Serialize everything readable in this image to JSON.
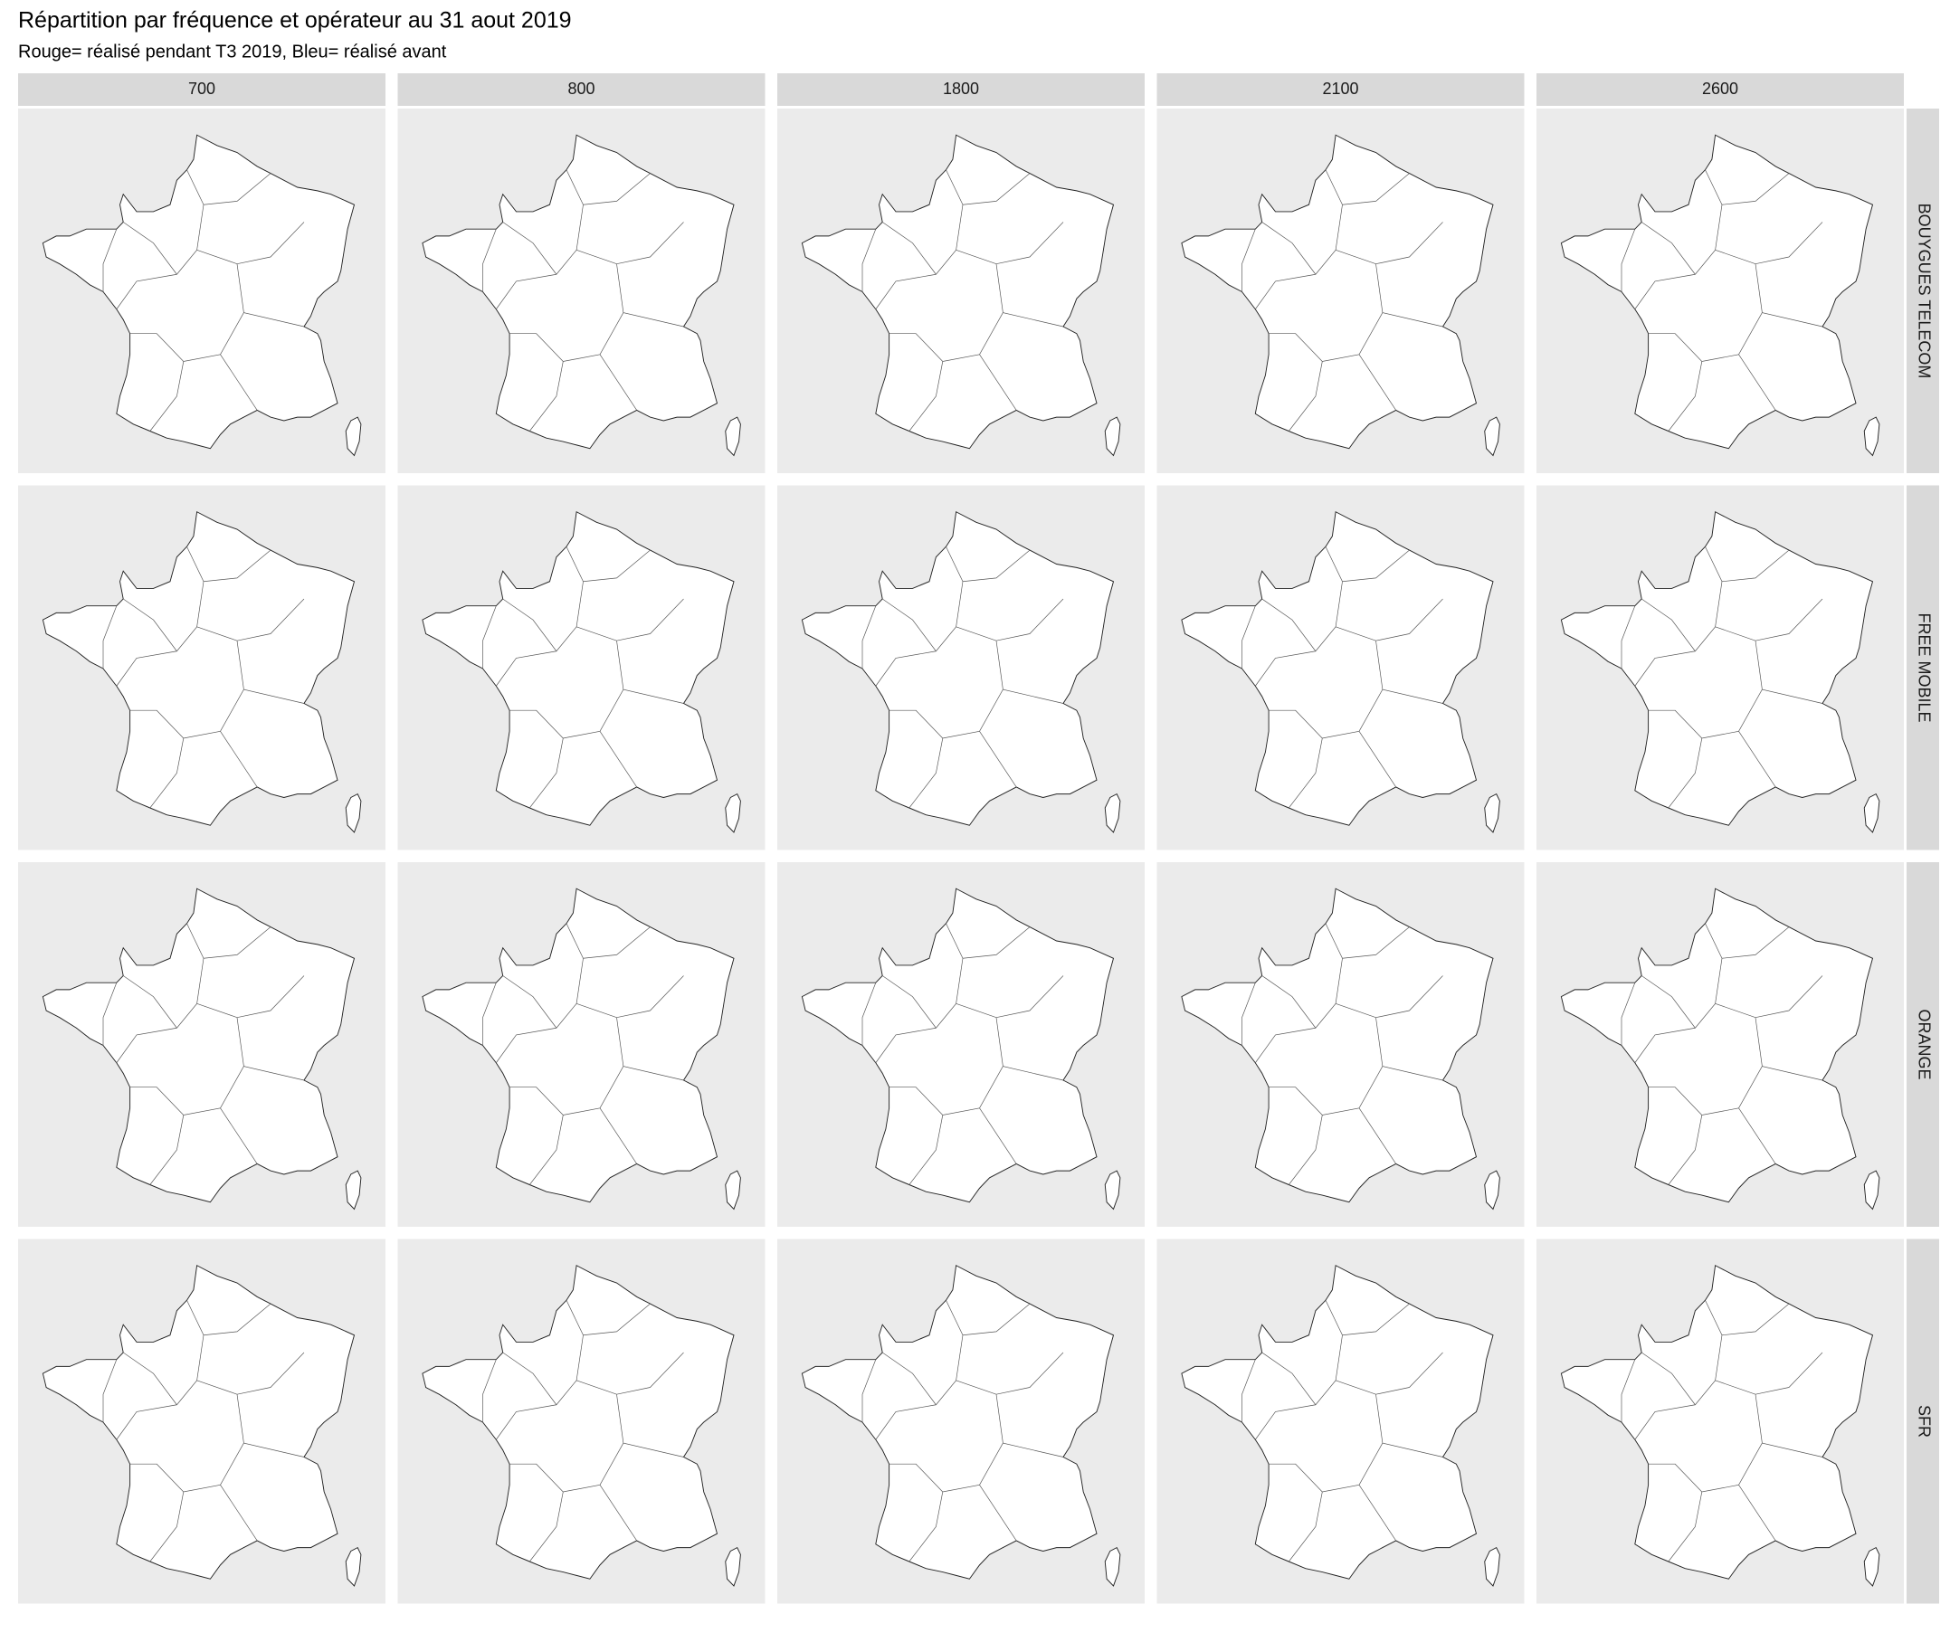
{
  "header": {
    "title": "Répartition par fréquence et opérateur au 31 aout 2019",
    "subtitle": "Rouge= réalisé pendant T3 2019, Bleu= réalisé avant"
  },
  "columns": [
    "700",
    "800",
    "1800",
    "2100",
    "2600"
  ],
  "rows": [
    "BOUYGUES TELECOM",
    "FREE MOBILE",
    "ORANGE",
    "SFR"
  ]
}
